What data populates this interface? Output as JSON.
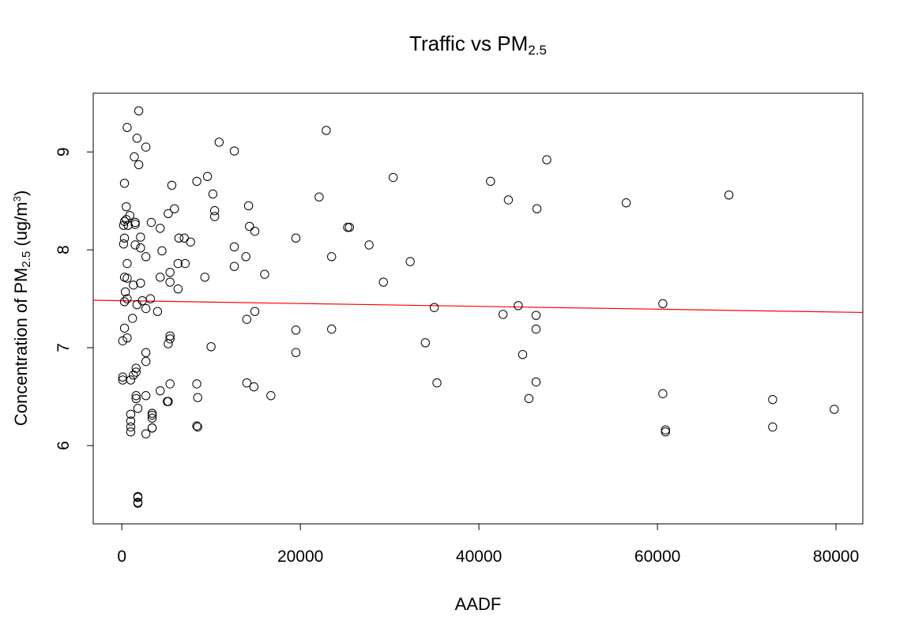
{
  "title": {
    "main": "Traffic vs PM",
    "sub": "2.5"
  },
  "xlabel": "AADF",
  "ylabel": {
    "pre": "Concentration of PM",
    "sub": "2.5",
    "mid": " (ug/m",
    "sup": "3",
    "post": ")"
  },
  "chart_data": {
    "type": "scatter",
    "title": "Traffic vs PM2.5",
    "xlabel": "AADF",
    "ylabel": "Concentration of PM2.5 (ug/m3)",
    "xlim": [
      -3200,
      83000
    ],
    "ylim": [
      5.2,
      9.6
    ],
    "xticks": [
      0,
      20000,
      40000,
      60000,
      80000
    ],
    "yticks": [
      6,
      7,
      8,
      9
    ],
    "grid": false,
    "marker_color": "#000000",
    "fit_color": "#ff0000",
    "fit_line": {
      "x": [
        -3200,
        83000
      ],
      "y": [
        7.485,
        7.36
      ]
    },
    "points": [
      [
        1900,
        9.42
      ],
      [
        600,
        9.25
      ],
      [
        1700,
        9.14
      ],
      [
        2700,
        9.05
      ],
      [
        1400,
        8.95
      ],
      [
        1900,
        8.87
      ],
      [
        300,
        8.68
      ],
      [
        500,
        8.44
      ],
      [
        900,
        8.35
      ],
      [
        500,
        8.31
      ],
      [
        300,
        8.29
      ],
      [
        200,
        8.25
      ],
      [
        700,
        8.25
      ],
      [
        1500,
        8.28
      ],
      [
        1500,
        8.26
      ],
      [
        300,
        8.12
      ],
      [
        2100,
        8.13
      ],
      [
        200,
        8.06
      ],
      [
        1500,
        8.05
      ],
      [
        2100,
        8.02
      ],
      [
        2700,
        7.93
      ],
      [
        600,
        7.86
      ],
      [
        300,
        7.72
      ],
      [
        600,
        7.71
      ],
      [
        1300,
        7.64
      ],
      [
        2100,
        7.66
      ],
      [
        400,
        7.57
      ],
      [
        600,
        7.5
      ],
      [
        300,
        7.47
      ],
      [
        1700,
        7.44
      ],
      [
        2300,
        7.48
      ],
      [
        3200,
        7.5
      ],
      [
        2700,
        7.4
      ],
      [
        1200,
        7.3
      ],
      [
        300,
        7.2
      ],
      [
        600,
        7.1
      ],
      [
        100,
        7.07
      ],
      [
        2700,
        6.95
      ],
      [
        2700,
        6.86
      ],
      [
        1600,
        6.79
      ],
      [
        1600,
        6.75
      ],
      [
        1300,
        6.72
      ],
      [
        1000,
        6.67
      ],
      [
        100,
        6.7
      ],
      [
        100,
        6.67
      ],
      [
        1600,
        6.51
      ],
      [
        2700,
        6.51
      ],
      [
        1600,
        6.48
      ],
      [
        1800,
        6.38
      ],
      [
        1000,
        6.32
      ],
      [
        1000,
        6.25
      ],
      [
        1000,
        6.19
      ],
      [
        1000,
        6.14
      ],
      [
        2700,
        6.12
      ],
      [
        1800,
        5.48
      ],
      [
        1800,
        5.47
      ],
      [
        1800,
        5.42
      ],
      [
        1800,
        5.41
      ],
      [
        3400,
        6.33
      ],
      [
        3400,
        6.31
      ],
      [
        3400,
        6.28
      ],
      [
        3400,
        6.18
      ],
      [
        3400,
        6.18
      ],
      [
        3300,
        8.28
      ],
      [
        4300,
        8.22
      ],
      [
        4500,
        7.99
      ],
      [
        4300,
        7.72
      ],
      [
        4000,
        7.37
      ],
      [
        4300,
        6.56
      ],
      [
        5200,
        6.45
      ],
      [
        5100,
        6.45
      ],
      [
        5400,
        6.63
      ],
      [
        5200,
        7.04
      ],
      [
        5400,
        7.09
      ],
      [
        5400,
        7.12
      ],
      [
        5400,
        7.67
      ],
      [
        5400,
        7.77
      ],
      [
        5200,
        8.37
      ],
      [
        5900,
        8.42
      ],
      [
        5600,
        8.66
      ],
      [
        6400,
        8.12
      ],
      [
        7000,
        8.12
      ],
      [
        6300,
        7.86
      ],
      [
        7100,
        7.86
      ],
      [
        6300,
        7.6
      ],
      [
        7700,
        8.08
      ],
      [
        8400,
        8.7
      ],
      [
        8500,
        6.49
      ],
      [
        8400,
        6.63
      ],
      [
        8400,
        6.2
      ],
      [
        8500,
        6.19
      ],
      [
        9300,
        7.72
      ],
      [
        9600,
        8.75
      ],
      [
        10000,
        7.01
      ],
      [
        10200,
        8.57
      ],
      [
        10400,
        8.4
      ],
      [
        10400,
        8.34
      ],
      [
        10900,
        9.1
      ],
      [
        12600,
        9.01
      ],
      [
        12600,
        8.03
      ],
      [
        12600,
        7.83
      ],
      [
        14200,
        8.45
      ],
      [
        14300,
        8.24
      ],
      [
        14900,
        8.19
      ],
      [
        13900,
        7.93
      ],
      [
        14000,
        7.29
      ],
      [
        14900,
        7.37
      ],
      [
        16000,
        7.75
      ],
      [
        14000,
        6.64
      ],
      [
        14800,
        6.6
      ],
      [
        16700,
        6.51
      ],
      [
        19500,
        8.12
      ],
      [
        19500,
        7.18
      ],
      [
        19500,
        6.95
      ],
      [
        22100,
        8.54
      ],
      [
        22900,
        9.22
      ],
      [
        23500,
        7.93
      ],
      [
        23500,
        7.19
      ],
      [
        25300,
        8.23
      ],
      [
        25500,
        8.23
      ],
      [
        27700,
        8.05
      ],
      [
        29300,
        7.67
      ],
      [
        30400,
        8.74
      ],
      [
        32300,
        7.88
      ],
      [
        34000,
        7.05
      ],
      [
        35000,
        7.41
      ],
      [
        35300,
        6.64
      ],
      [
        41300,
        8.7
      ],
      [
        43300,
        8.51
      ],
      [
        42700,
        7.34
      ],
      [
        44400,
        7.43
      ],
      [
        44900,
        6.93
      ],
      [
        45600,
        6.48
      ],
      [
        46400,
        7.33
      ],
      [
        46400,
        7.19
      ],
      [
        46400,
        6.65
      ],
      [
        46500,
        8.42
      ],
      [
        47600,
        8.92
      ],
      [
        56500,
        8.48
      ],
      [
        60600,
        7.45
      ],
      [
        60600,
        6.53
      ],
      [
        60900,
        6.16
      ],
      [
        60900,
        6.14
      ],
      [
        68000,
        8.56
      ],
      [
        72900,
        6.47
      ],
      [
        72900,
        6.19
      ],
      [
        79800,
        6.37
      ]
    ]
  }
}
